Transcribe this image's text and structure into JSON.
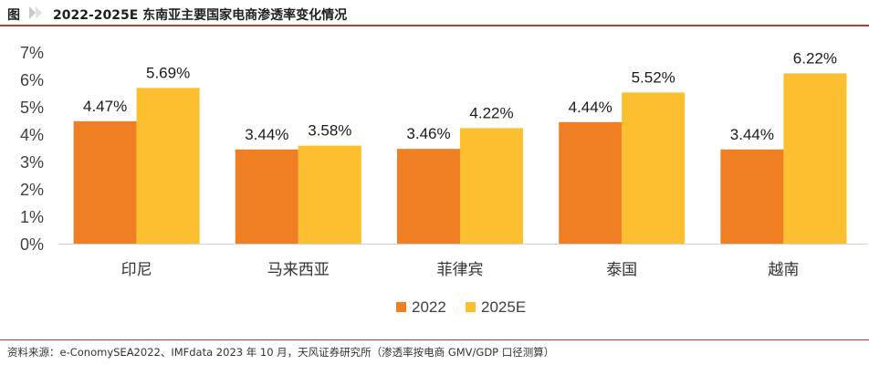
{
  "header": {
    "figure_label": "图",
    "title": "2022-2025E 东南亚主要国家电商渗透率变化情况"
  },
  "footer": {
    "source": "资料来源：e-ConomySEA2022、IMFdata 2023 年 10 月，天风证券研究所（渗透率按电商 GMV/GDP 口径测算）"
  },
  "colors": {
    "series_2022": "#f07f24",
    "series_2025E": "#fbbf2f",
    "accent_rule": "#b93a32"
  },
  "chart_data": {
    "type": "bar",
    "categories": [
      "印尼",
      "马来西亚",
      "菲律宾",
      "泰国",
      "越南"
    ],
    "series": [
      {
        "name": "2022",
        "values": [
          4.47,
          3.44,
          3.46,
          4.44,
          3.44
        ],
        "labels": [
          "4.47%",
          "3.44%",
          "3.46%",
          "4.44%",
          "3.44%"
        ]
      },
      {
        "name": "2025E",
        "values": [
          5.69,
          3.58,
          4.22,
          5.52,
          6.22
        ],
        "labels": [
          "5.69%",
          "3.58%",
          "4.22%",
          "5.52%",
          "6.22%"
        ]
      }
    ],
    "y_ticks": [
      "0%",
      "1%",
      "2%",
      "3%",
      "4%",
      "5%",
      "6%",
      "7%"
    ],
    "ylim": [
      0,
      7
    ],
    "grid": false,
    "legend_position": "bottom-center"
  }
}
